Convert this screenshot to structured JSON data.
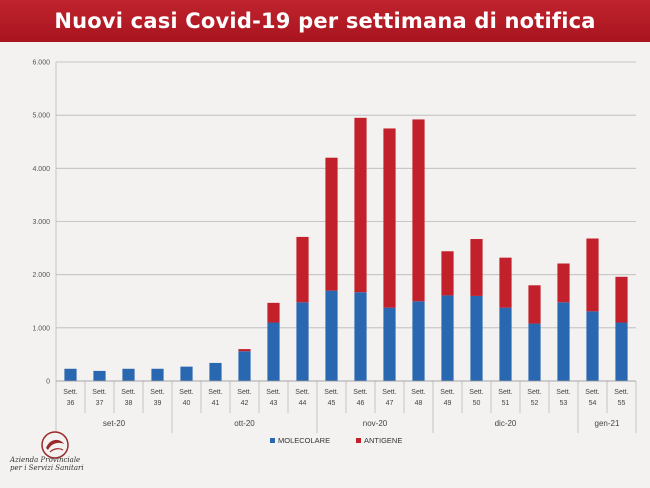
{
  "header": {
    "title": "Nuovi casi Covid-19 per settimana di notifica"
  },
  "logo": {
    "line1": "Azienda Provinciale",
    "line2": "per i Servizi Sanitari"
  },
  "colors": {
    "molecolare": "#2a67b1",
    "antigene": "#c2202a",
    "title_bg": "#b01a24"
  },
  "chart_data": {
    "type": "bar",
    "stacked": true,
    "title": "Nuovi casi Covid-19 per settimana di notifica",
    "ylim": [
      0,
      6000
    ],
    "yticks": [
      0,
      1000,
      2000,
      3000,
      4000,
      5000,
      6000
    ],
    "ytick_labels": [
      "0",
      "1.000",
      "2.000",
      "3.000",
      "4.000",
      "5.000",
      "6.000"
    ],
    "grid": true,
    "legend_position": "bottom",
    "categories": [
      {
        "line1": "Sett.",
        "line2": "36"
      },
      {
        "line1": "Sett.",
        "line2": "37"
      },
      {
        "line1": "Sett.",
        "line2": "38"
      },
      {
        "line1": "Sett.",
        "line2": "39"
      },
      {
        "line1": "Sett.",
        "line2": "40"
      },
      {
        "line1": "Sett.",
        "line2": "41"
      },
      {
        "line1": "Sett.",
        "line2": "42"
      },
      {
        "line1": "Sett.",
        "line2": "43"
      },
      {
        "line1": "Sett.",
        "line2": "44"
      },
      {
        "line1": "Sett.",
        "line2": "45"
      },
      {
        "line1": "Sett.",
        "line2": "46"
      },
      {
        "line1": "Sett.",
        "line2": "47"
      },
      {
        "line1": "Sett.",
        "line2": "48"
      },
      {
        "line1": "Sett.",
        "line2": "49"
      },
      {
        "line1": "Sett.",
        "line2": "50"
      },
      {
        "line1": "Sett.",
        "line2": "51"
      },
      {
        "line1": "Sett.",
        "line2": "52"
      },
      {
        "line1": "Sett.",
        "line2": "53"
      },
      {
        "line1": "Sett.",
        "line2": "54"
      },
      {
        "line1": "Sett.",
        "line2": "55"
      }
    ],
    "month_groups": [
      {
        "label": "set-20",
        "count": 4
      },
      {
        "label": "ott-20",
        "count": 5
      },
      {
        "label": "nov-20",
        "count": 4
      },
      {
        "label": "dic-20",
        "count": 5
      },
      {
        "label": "gen-21",
        "count": 2
      }
    ],
    "series": [
      {
        "name": "MOLECOLARE",
        "color": "#2a67b1",
        "values": [
          230,
          190,
          230,
          230,
          270,
          340,
          560,
          1100,
          1480,
          1700,
          1670,
          1380,
          1500,
          1610,
          1600,
          1380,
          1080,
          1480,
          1310,
          1100
        ]
      },
      {
        "name": "ANTIGENE",
        "color": "#c2202a",
        "values": [
          0,
          0,
          0,
          0,
          0,
          0,
          40,
          370,
          1230,
          2500,
          3280,
          3370,
          3420,
          830,
          1070,
          940,
          720,
          730,
          1370,
          860
        ]
      }
    ]
  }
}
